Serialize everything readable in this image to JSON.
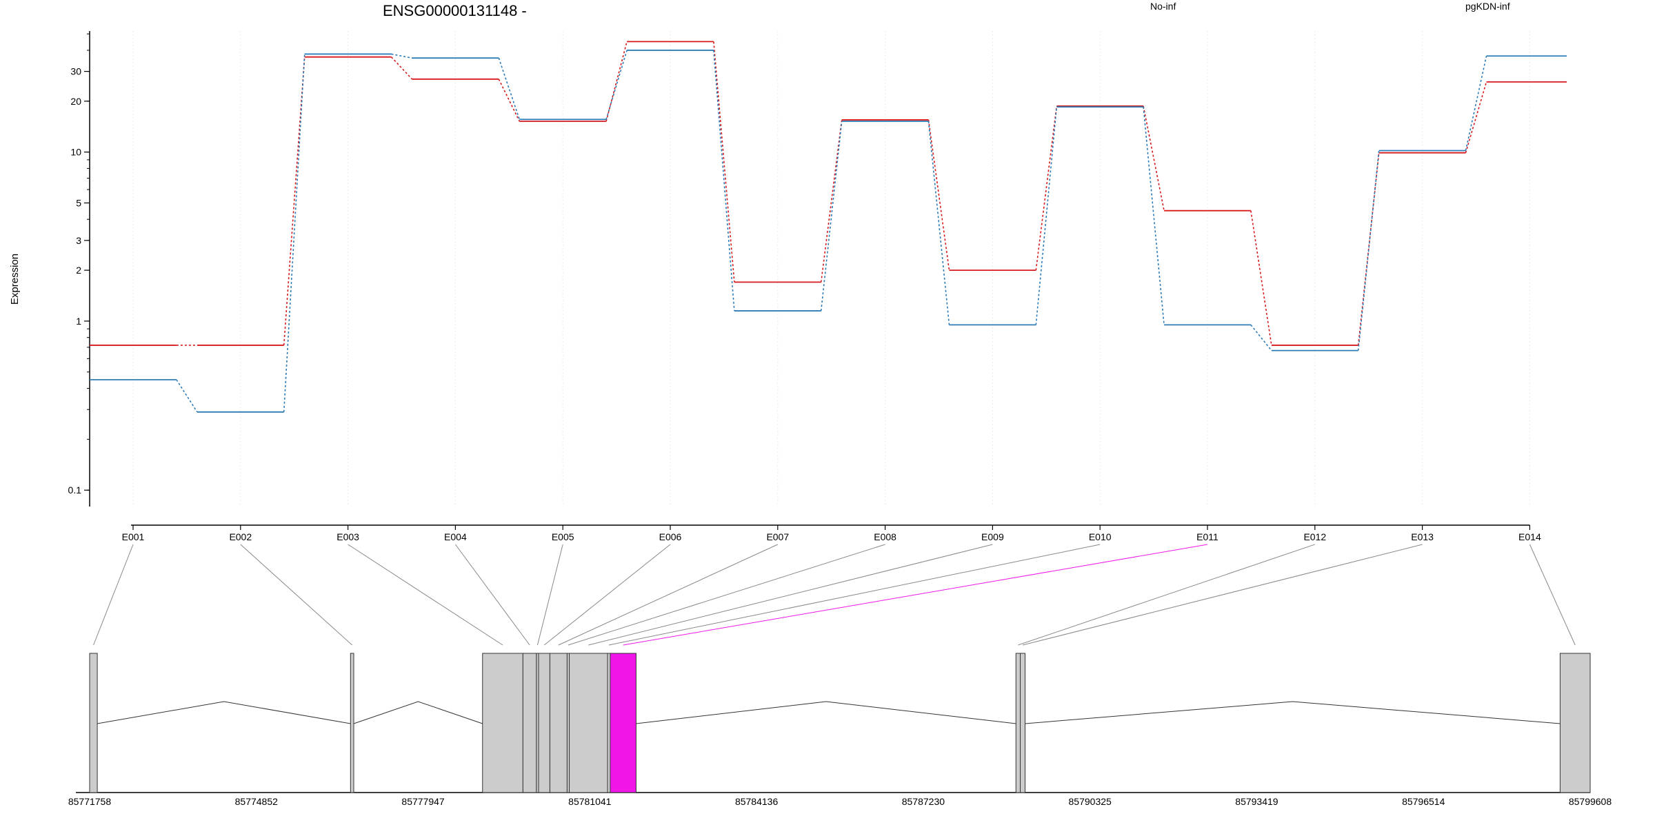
{
  "chart_data": {
    "type": "line",
    "title": "ENSG00000131148 -",
    "ylabel": "Expression",
    "yscale": "log",
    "ylim": [
      0.08,
      52
    ],
    "yticks": [
      {
        "value": 0.1,
        "label": "0.1"
      },
      {
        "value": 1,
        "label": "1"
      },
      {
        "value": 2,
        "label": "2"
      },
      {
        "value": 3,
        "label": "3"
      },
      {
        "value": 5,
        "label": "5"
      },
      {
        "value": 10,
        "label": "10"
      },
      {
        "value": 20,
        "label": "20"
      },
      {
        "value": 30,
        "label": "30"
      }
    ],
    "categories": [
      "E001",
      "E002",
      "E003",
      "E004",
      "E005",
      "E006",
      "E007",
      "E008",
      "E009",
      "E010",
      "E011",
      "E012",
      "E013",
      "E014"
    ],
    "legend_placement": "top",
    "grid": true,
    "series": [
      {
        "name": "No-inf",
        "color": "#d7191c",
        "values": [
          0.72,
          0.72,
          36.5,
          27,
          15.2,
          45,
          1.7,
          15.5,
          2.0,
          18.7,
          4.5,
          0.72,
          9.9,
          26
        ]
      },
      {
        "name": "pgKDN-inf",
        "color": "#2c7bb6",
        "values": [
          0.45,
          0.29,
          38,
          36,
          15.6,
          40,
          1.15,
          15.2,
          0.95,
          18.5,
          0.95,
          0.67,
          10.2,
          37
        ]
      }
    ],
    "gene_model": {
      "coordinates": [
        "85771758",
        "85774852",
        "85777947",
        "85781041",
        "85784136",
        "85787230",
        "85790325",
        "85793419",
        "85796514",
        "85799608"
      ],
      "coord_range": [
        85771758,
        85799608
      ],
      "exons": [
        {
          "id": "E001",
          "start": 85771758,
          "end": 85771900,
          "highlight": false
        },
        {
          "id": "E002",
          "start": 85776600,
          "end": 85776660,
          "highlight": false
        },
        {
          "id": "E003",
          "start": 85779050,
          "end": 85779800,
          "highlight": false
        },
        {
          "id": "E004",
          "start": 85779800,
          "end": 85780050,
          "highlight": false
        },
        {
          "id": "E005",
          "start": 85780050,
          "end": 85780090,
          "highlight": false
        },
        {
          "id": "E006",
          "start": 85780090,
          "end": 85780300,
          "highlight": false
        },
        {
          "id": "E007",
          "start": 85780300,
          "end": 85780620,
          "highlight": false
        },
        {
          "id": "E008",
          "start": 85780620,
          "end": 85780660,
          "highlight": false
        },
        {
          "id": "E009",
          "start": 85780660,
          "end": 85781370,
          "highlight": false
        },
        {
          "id": "E010",
          "start": 85781370,
          "end": 85781420,
          "highlight": false
        },
        {
          "id": "E011",
          "start": 85781420,
          "end": 85781900,
          "highlight": true
        },
        {
          "id": "E012",
          "start": 85788950,
          "end": 85789030,
          "highlight": false
        },
        {
          "id": "E013",
          "start": 85789030,
          "end": 85789120,
          "highlight": false
        },
        {
          "id": "E014",
          "start": 85799050,
          "end": 85799608,
          "highlight": false
        }
      ],
      "highlight_color": "#f016e8",
      "exon_color": "#cccccc"
    }
  }
}
